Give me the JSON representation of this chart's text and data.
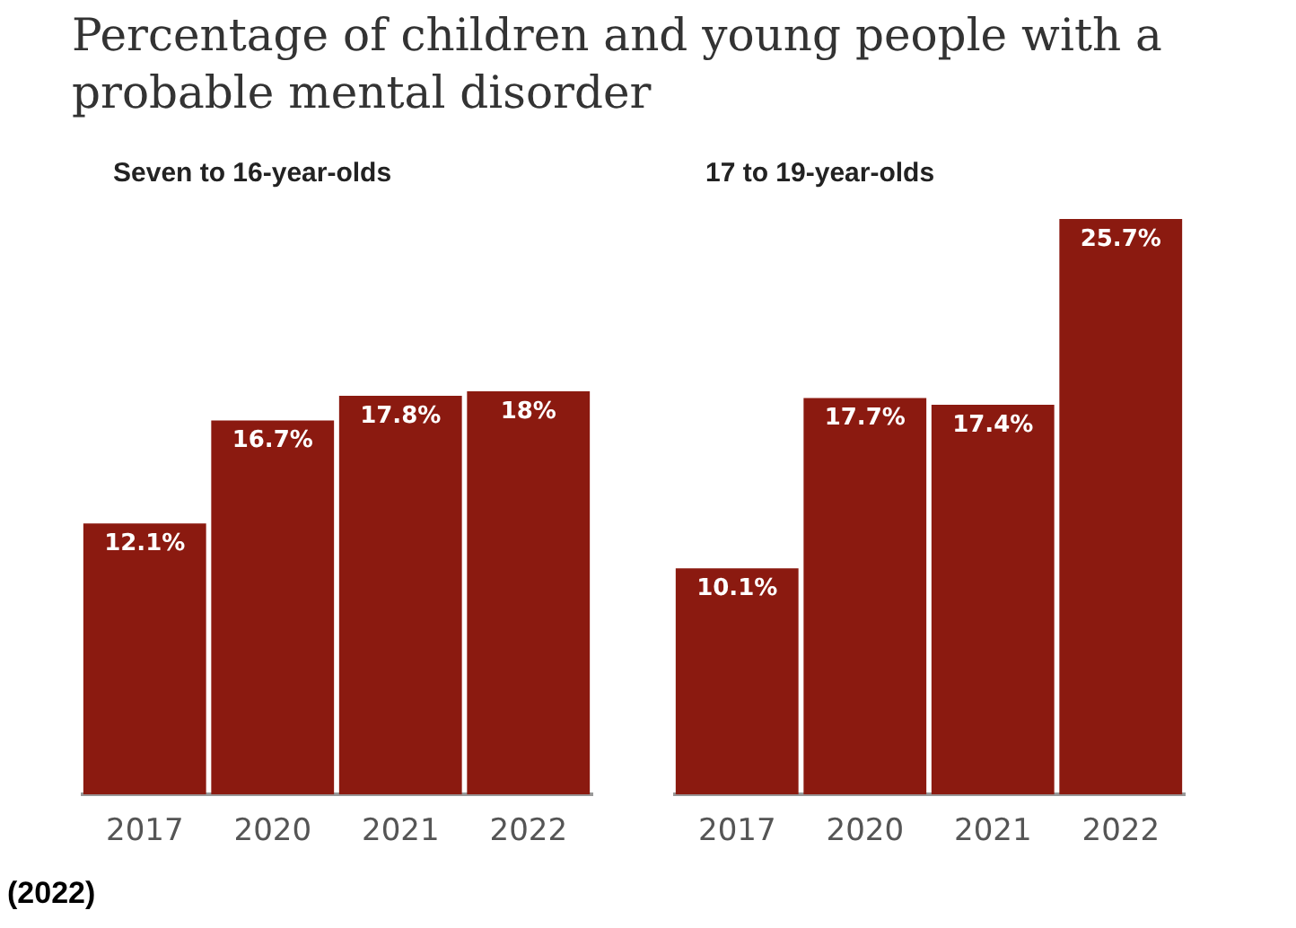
{
  "chart_data": [
    {
      "type": "bar",
      "title": "Percentage of children and young people with a probable mental disorder",
      "subtitle": "Seven to 16-year-olds",
      "categories": [
        "2017",
        "2020",
        "2021",
        "2022"
      ],
      "values": [
        12.1,
        16.7,
        17.8,
        18
      ],
      "value_labels": [
        "12.1%",
        "16.7%",
        "17.8%",
        "18%"
      ],
      "color": "#8b1a10",
      "grid": false,
      "legend": false,
      "tick_labels": "x",
      "annotations": [
        "(2022)"
      ]
    },
    {
      "type": "bar",
      "subtitle": "17 to 19-year-olds",
      "categories": [
        "2017",
        "2020",
        "2021",
        "2022"
      ],
      "values": [
        10.1,
        17.7,
        17.4,
        25.7
      ],
      "value_labels": [
        "10.1%",
        "17.7%",
        "17.4%",
        "25.7%"
      ],
      "color": "#8b1a10",
      "grid": false,
      "legend": false,
      "tick_labels": "x"
    }
  ]
}
